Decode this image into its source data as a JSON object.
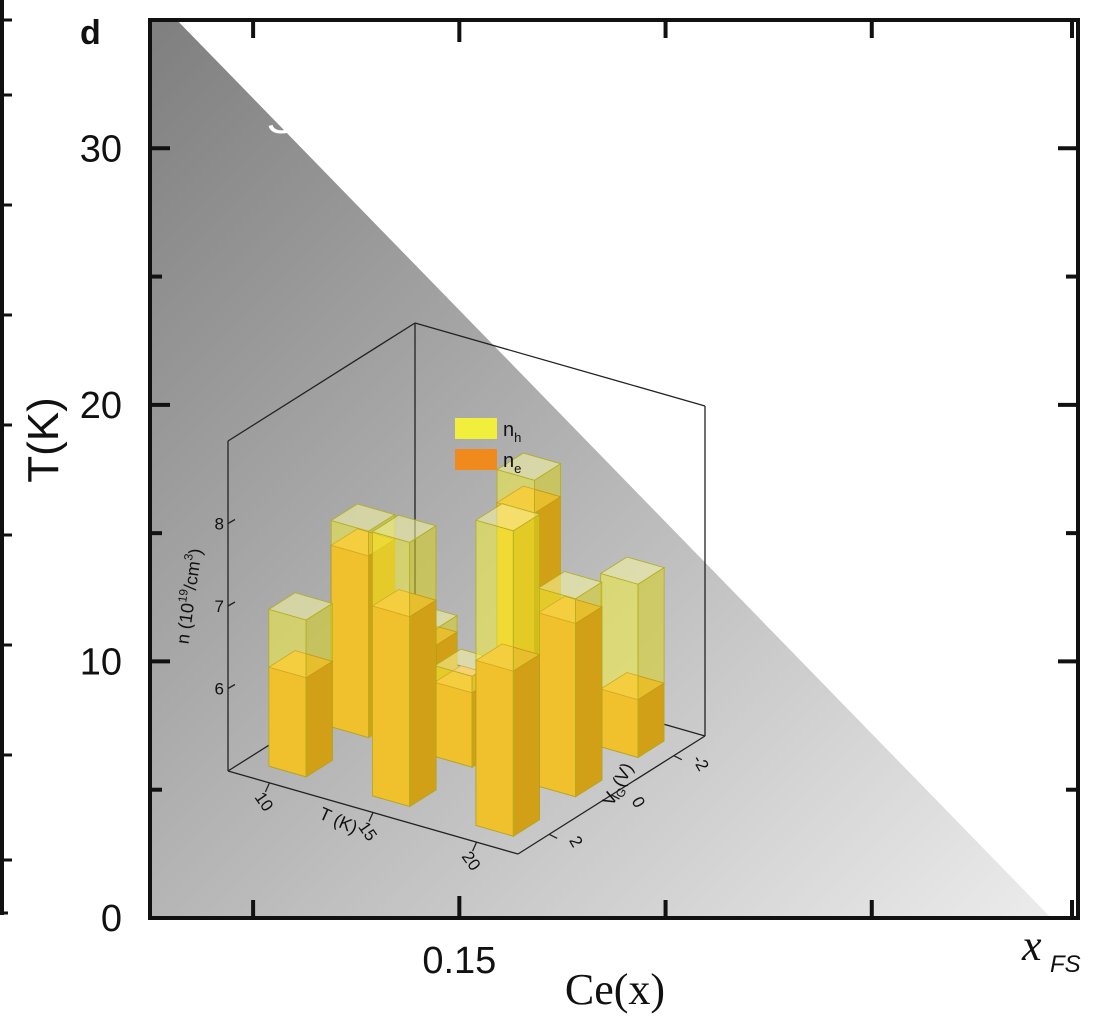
{
  "chart_data": [
    {
      "type": "area",
      "panel_label": "d",
      "xlabel": "Ce(x)",
      "ylabel": "T(K)",
      "x_ticks": [
        {
          "value": 0.15,
          "label": "0.15"
        }
      ],
      "x_end_label": {
        "main": "x",
        "sub": "FS"
      },
      "y_ticks": [
        {
          "value": 0,
          "label": "0"
        },
        {
          "value": 10,
          "label": "10"
        },
        {
          "value": 20,
          "label": "20"
        },
        {
          "value": 30,
          "label": "30"
        }
      ],
      "xlim": [
        0.135,
        0.18
      ],
      "ylim": [
        0,
        35
      ],
      "regions": [
        {
          "name": "SDW",
          "boundary": [
            {
              "x": 0.1363,
              "y": 35
            },
            {
              "x": 0.1787,
              "y": 0
            }
          ],
          "fill_gradient": [
            "#7f7f7f",
            "#ebebeb"
          ]
        }
      ]
    },
    {
      "type": "bar",
      "subtype": "3d-bar-inset",
      "zlabel": "n (10",
      "zlabel_sup": "19",
      "zlabel_unit": "/cm",
      "zlabel_unit_sup": "3",
      "zlabel_close": ")",
      "zlim": [
        5,
        9
      ],
      "z_ticks": [
        {
          "value": 6,
          "label": "6"
        },
        {
          "value": 7,
          "label": "7"
        },
        {
          "value": 8,
          "label": "8"
        }
      ],
      "t_axis": {
        "title": "T (K)",
        "ticks": [
          {
            "value": 10,
            "label": "10"
          },
          {
            "value": 15,
            "label": "15"
          },
          {
            "value": 20,
            "label": "20"
          }
        ],
        "range": [
          8,
          22
        ]
      },
      "v_axis": {
        "title_main": "V",
        "title_sub": "G",
        "title_unit": "(V)",
        "ticks": [
          {
            "value": -2,
            "label": "-2"
          },
          {
            "value": 0,
            "label": "0"
          },
          {
            "value": 2,
            "label": "2"
          }
        ],
        "range": [
          -3,
          3
        ]
      },
      "legend": [
        {
          "main": "n",
          "sub": "h",
          "color": "#f2ef3c"
        },
        {
          "main": "n",
          "sub": "e",
          "color": "#f08a1c"
        }
      ],
      "series_colors": {
        "n_h": "#f2ef3c",
        "n_e": "#f08a1c"
      },
      "bars": [
        {
          "T": 10,
          "V": 2,
          "n_h": 6.9,
          "n_e": 6.2
        },
        {
          "T": 15,
          "V": 2,
          "n_h": 8.2,
          "n_e": 7.3
        },
        {
          "T": 20,
          "V": 2,
          "n_h": 8.7,
          "n_e": 7.0
        },
        {
          "T": 10,
          "V": 0,
          "n_h": 7.5,
          "n_e": 7.2
        },
        {
          "T": 15,
          "V": 0,
          "n_h": 6.1,
          "n_e": 5.9
        },
        {
          "T": 20,
          "V": 0,
          "n_h": 7.4,
          "n_e": 7.1
        },
        {
          "T": 10,
          "V": -2,
          "n_h": 5.8,
          "n_e": 5.6
        },
        {
          "T": 15,
          "V": -2,
          "n_h": 8.0,
          "n_e": 7.6
        },
        {
          "T": 20,
          "V": -2,
          "n_h": 7.1,
          "n_e": 5.7
        }
      ]
    }
  ]
}
